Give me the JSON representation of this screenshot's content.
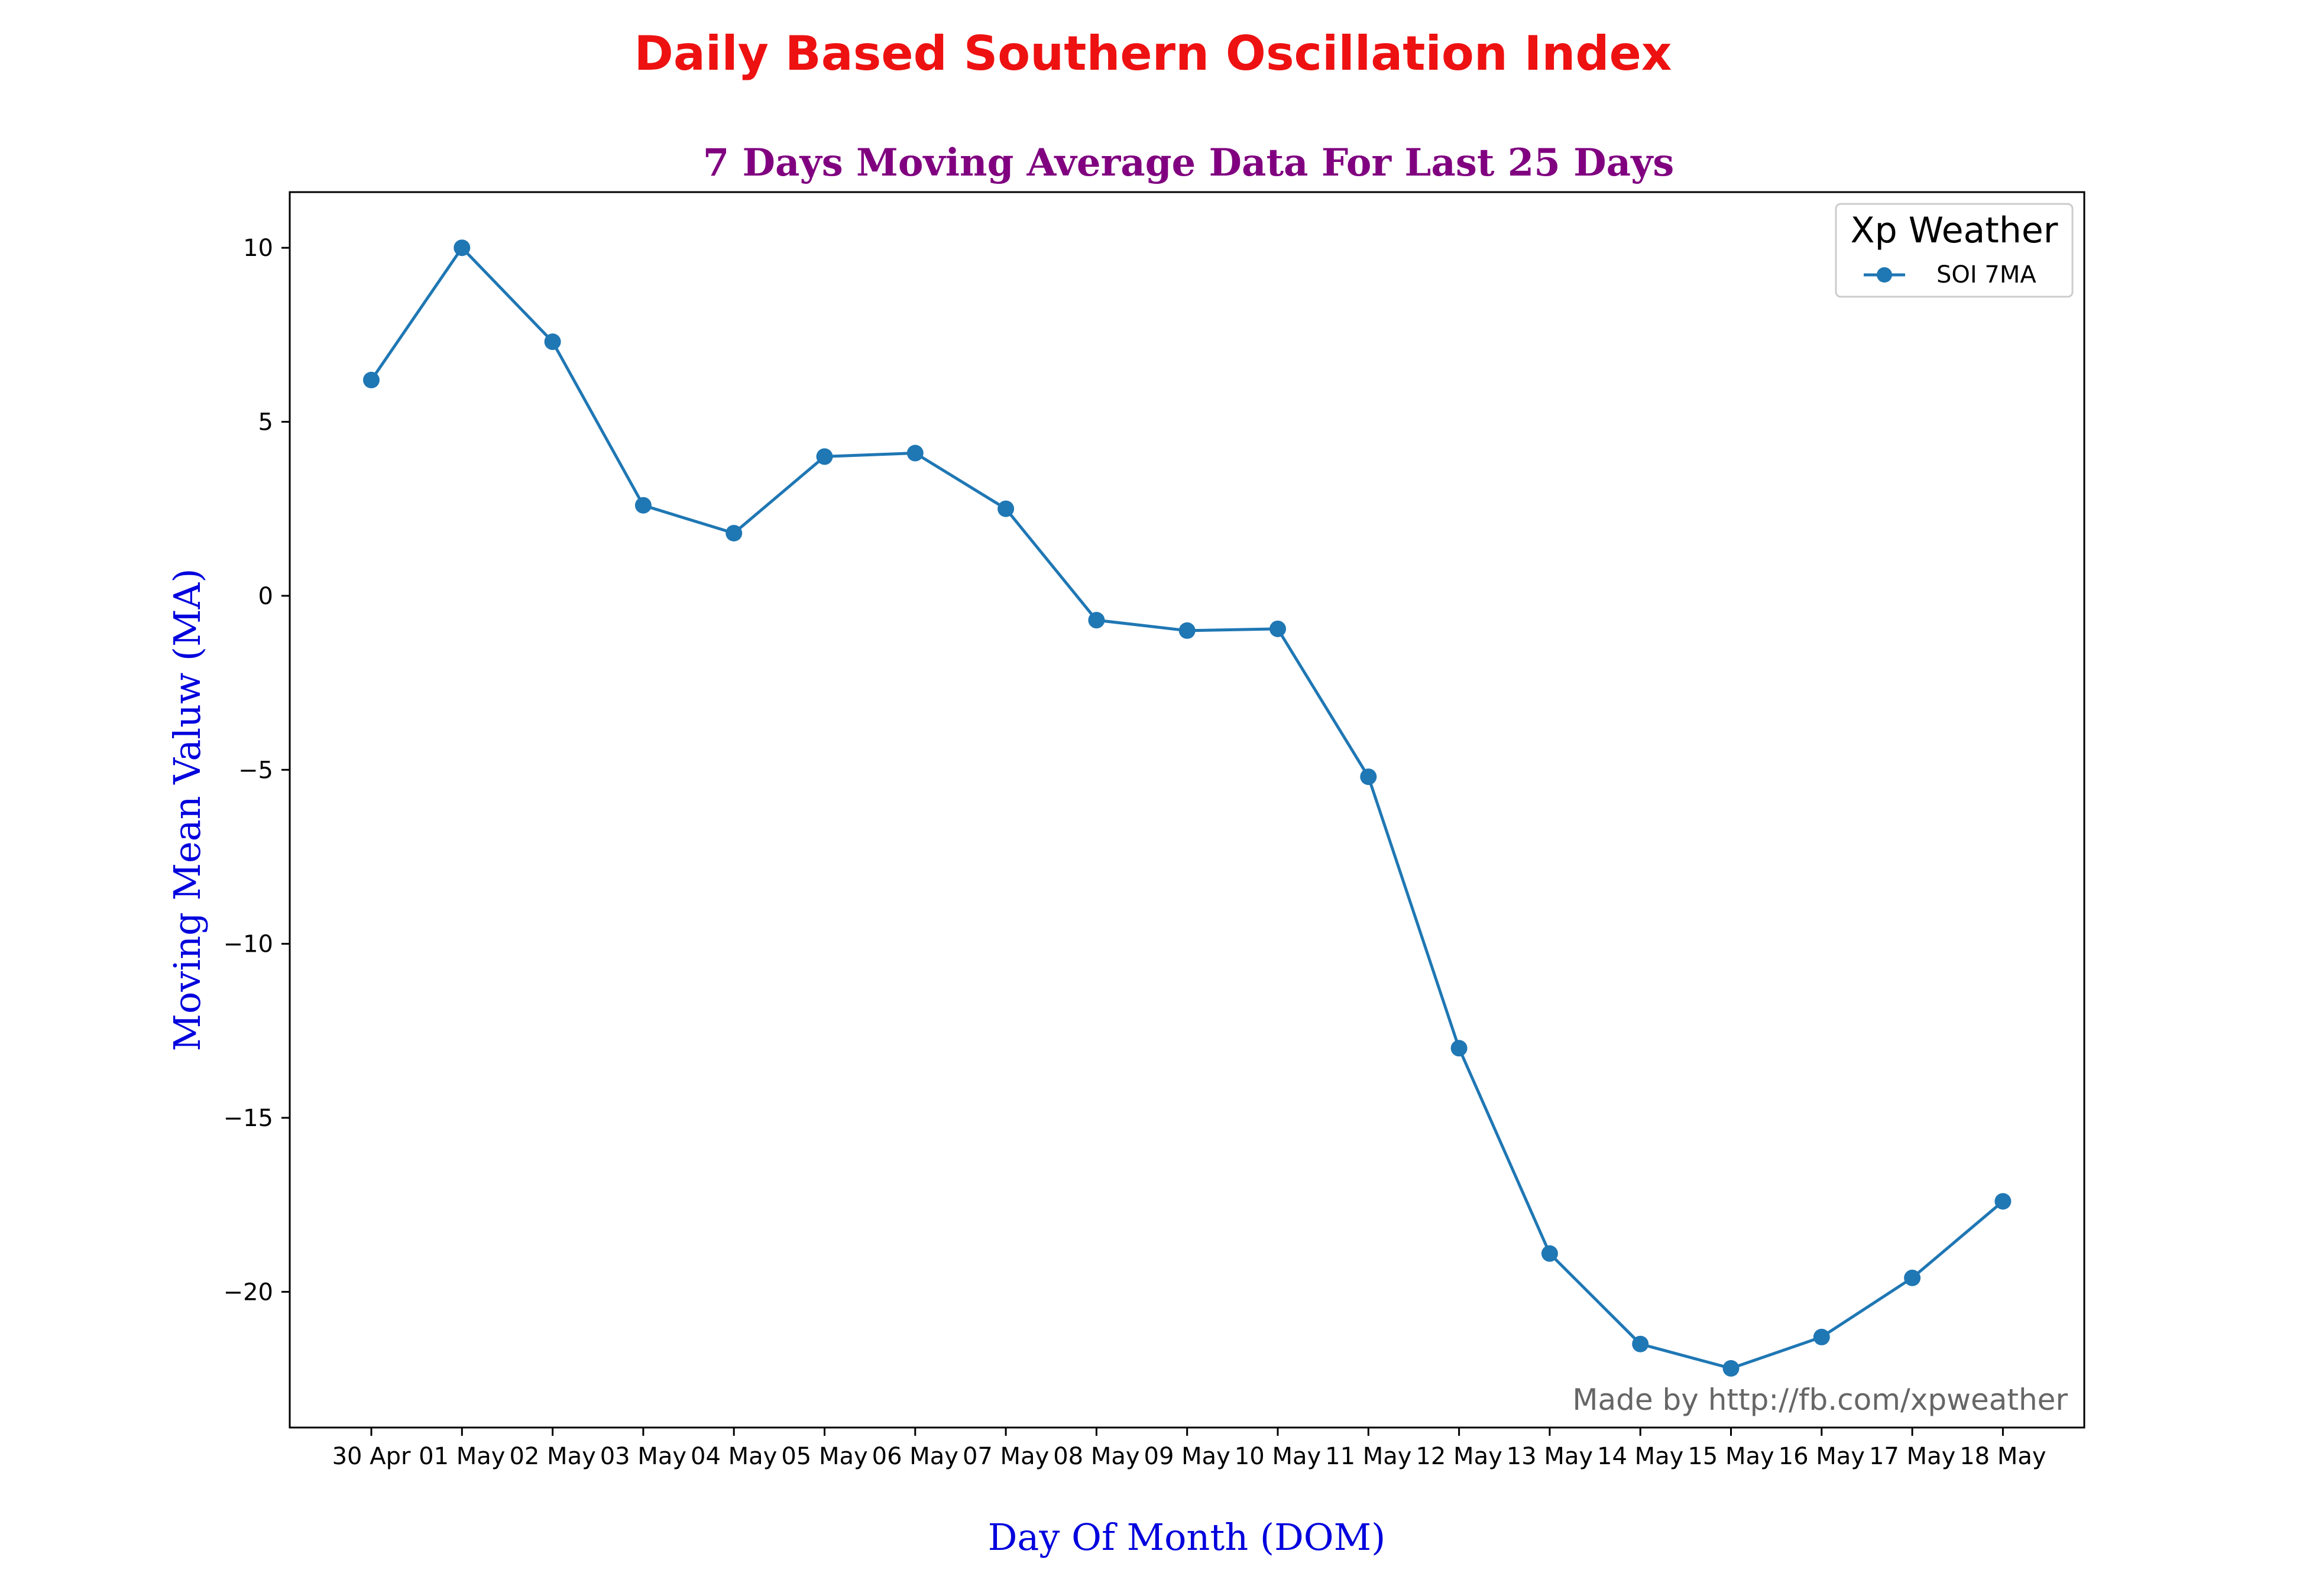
{
  "colors": {
    "title": "#ee1111",
    "subtitle": "#800080",
    "axis_label": "#0000dd",
    "series": "#1f77b4",
    "watermark": "#666666"
  },
  "watermark": "Made by http://fb.com/xpweather",
  "chart_data": {
    "type": "line",
    "title": "Daily Based Southern Oscillation Index",
    "subtitle": "7 Days Moving Average Data For Last 25 Days",
    "xlabel": "Day Of Month (DOM)",
    "ylabel": "Moving Mean Valuw (MA)",
    "categories": [
      "30 Apr",
      "01 May",
      "02 May",
      "03 May",
      "04 May",
      "05 May",
      "06 May",
      "07 May",
      "08 May",
      "09 May",
      "10 May",
      "11 May",
      "12 May",
      "13 May",
      "14 May",
      "15 May",
      "16 May",
      "17 May",
      "18 May"
    ],
    "series": [
      {
        "name": "SOI 7MA",
        "values": [
          6.2,
          10.0,
          7.3,
          2.6,
          1.8,
          4.0,
          4.1,
          2.5,
          -0.7,
          -1.0,
          -0.95,
          -5.2,
          -13.0,
          -18.9,
          -21.5,
          -22.2,
          -21.3,
          -19.6,
          -17.4
        ]
      }
    ],
    "ylim": [
      -23.9,
      11.6
    ],
    "yticks": [
      10,
      5,
      0,
      -5,
      -10,
      -15,
      -20
    ],
    "legend": {
      "title": "Xp Weather",
      "position": "top-right"
    },
    "grid": false
  }
}
